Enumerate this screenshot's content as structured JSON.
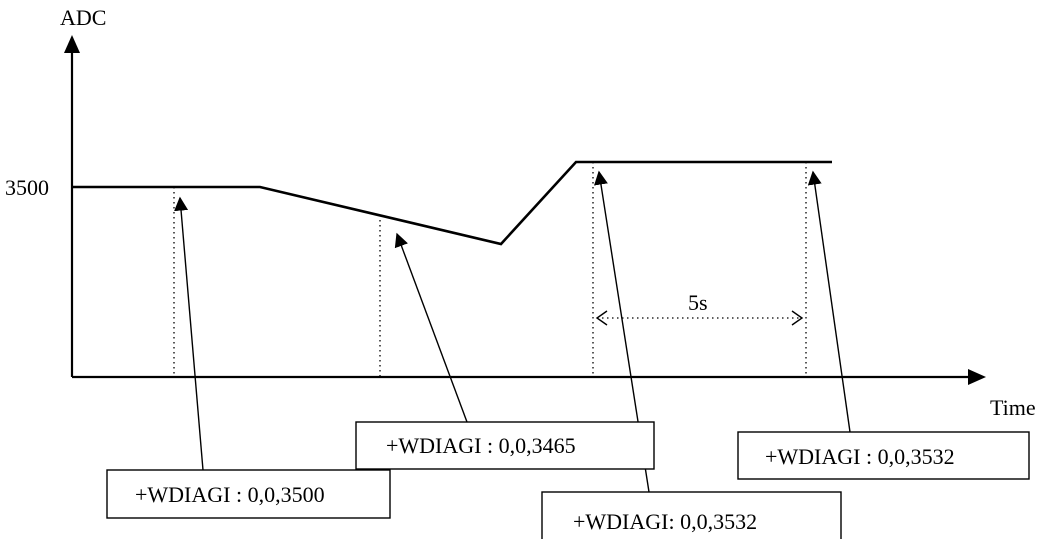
{
  "axes": {
    "y_label": "ADC",
    "x_label": "Time",
    "y_tick": "3500"
  },
  "interval_label": "5s",
  "callouts": [
    {
      "text": "+WDIAGI : 0,0,3500"
    },
    {
      "text": "+WDIAGI : 0,0,3465"
    },
    {
      "text": "+WDIAGI: 0,0,3532"
    },
    {
      "text": "+WDIAGI : 0,0,3532"
    }
  ]
}
